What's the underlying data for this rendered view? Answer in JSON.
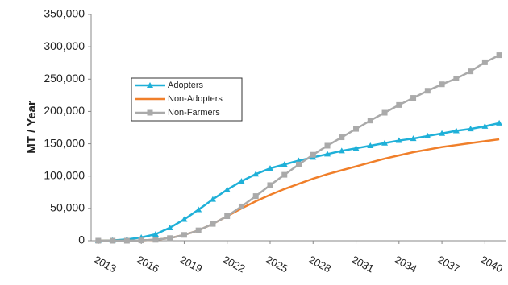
{
  "chart_data": {
    "type": "line",
    "y_label": "MT / Year",
    "x": [
      2013,
      2014,
      2015,
      2016,
      2017,
      2018,
      2019,
      2020,
      2021,
      2022,
      2023,
      2024,
      2025,
      2026,
      2027,
      2028,
      2029,
      2030,
      2031,
      2032,
      2033,
      2034,
      2035,
      2036,
      2037,
      2038,
      2039,
      2040,
      2041
    ],
    "xlim": [
      2012.5,
      2041.5
    ],
    "xticks": [
      2013,
      2016,
      2019,
      2022,
      2025,
      2028,
      2031,
      2034,
      2037,
      2040
    ],
    "ylim": [
      0,
      350000
    ],
    "yticks": [
      0,
      {
        "value": 50000,
        "label": "50,000"
      },
      {
        "value": 100000,
        "label": "100,000"
      },
      {
        "value": 150000,
        "label": "150,000"
      },
      {
        "value": 200000,
        "label": "200,000"
      },
      {
        "value": 250000,
        "label": "250,000"
      },
      {
        "value": 300000,
        "label": "300,000"
      },
      {
        "value": 350000,
        "label": "350,000"
      }
    ],
    "grid": false,
    "series": [
      {
        "name": "Adopters",
        "color": "#1fb0d8",
        "marker": "triangle",
        "values": [
          0,
          500,
          2000,
          5000,
          10000,
          20000,
          33000,
          48000,
          64000,
          79000,
          92000,
          103000,
          112000,
          118000,
          124000,
          129000,
          134000,
          139000,
          143000,
          147000,
          151000,
          155000,
          158000,
          162000,
          166000,
          170000,
          173000,
          177000,
          182000
        ]
      },
      {
        "name": "Non-Adopters",
        "color": "#f07f2a",
        "marker": "none",
        "values": [
          0,
          0,
          0,
          500,
          1500,
          4000,
          9000,
          16000,
          26000,
          38000,
          50000,
          61000,
          71000,
          80000,
          88000,
          96000,
          103000,
          109000,
          115000,
          121000,
          127000,
          132000,
          137000,
          141000,
          145000,
          148000,
          151000,
          154000,
          157000
        ]
      },
      {
        "name": "Non-Farmers",
        "color": "#aaaaaa",
        "marker": "square",
        "values": [
          0,
          0,
          0,
          500,
          1500,
          4000,
          9000,
          16000,
          26000,
          38000,
          53000,
          69000,
          86000,
          102000,
          118000,
          133000,
          147000,
          160000,
          173000,
          186000,
          198000,
          210000,
          221000,
          232000,
          242000,
          251000,
          262000,
          276000,
          287000
        ]
      }
    ]
  }
}
